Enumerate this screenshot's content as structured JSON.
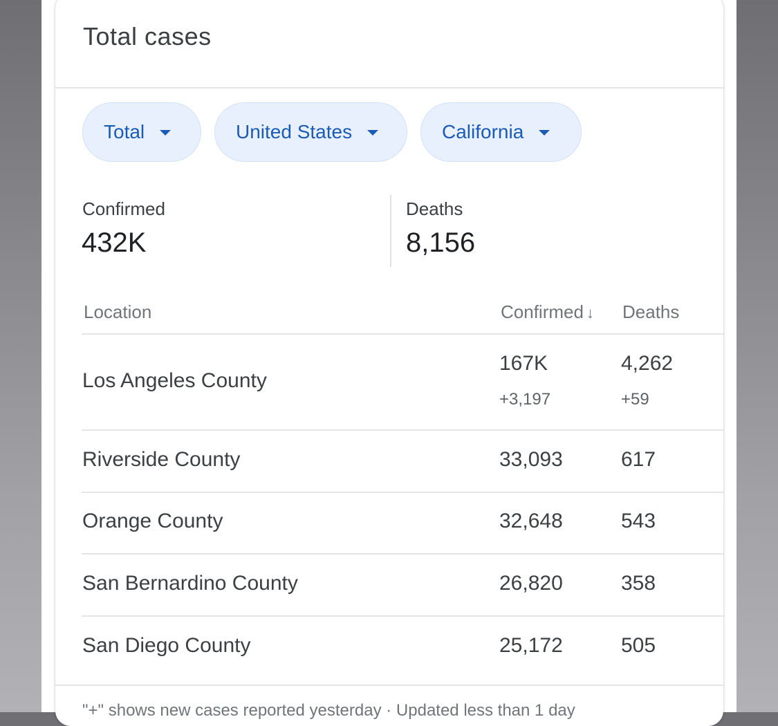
{
  "card": {
    "title": "Total cases"
  },
  "filters": {
    "total": "Total",
    "country": "United States",
    "state": "California"
  },
  "summary": {
    "confirmed_label": "Confirmed",
    "confirmed_value": "432K",
    "deaths_label": "Deaths",
    "deaths_value": "8,156"
  },
  "table": {
    "headers": {
      "location": "Location",
      "confirmed": "Confirmed",
      "sort_indicator": "↓",
      "deaths": "Deaths"
    },
    "rows": [
      {
        "location": "Los Angeles County",
        "confirmed": "167K",
        "confirmed_delta": "+3,197",
        "deaths": "4,262",
        "deaths_delta": "+59"
      },
      {
        "location": "Riverside County",
        "confirmed": "33,093",
        "deaths": "617"
      },
      {
        "location": "Orange County",
        "confirmed": "32,648",
        "deaths": "543"
      },
      {
        "location": "San Bernardino County",
        "confirmed": "26,820",
        "deaths": "358"
      },
      {
        "location": "San Diego County",
        "confirmed": "25,172",
        "deaths": "505"
      }
    ]
  },
  "footer": {
    "note": "\"+\" shows new cases reported yesterday · Updated less than 1 day"
  },
  "colors": {
    "chip_bg": "#e8f0fe",
    "chip_text": "#1a5bb5",
    "primary_text": "#3c4043",
    "secondary_text": "#70757a"
  }
}
